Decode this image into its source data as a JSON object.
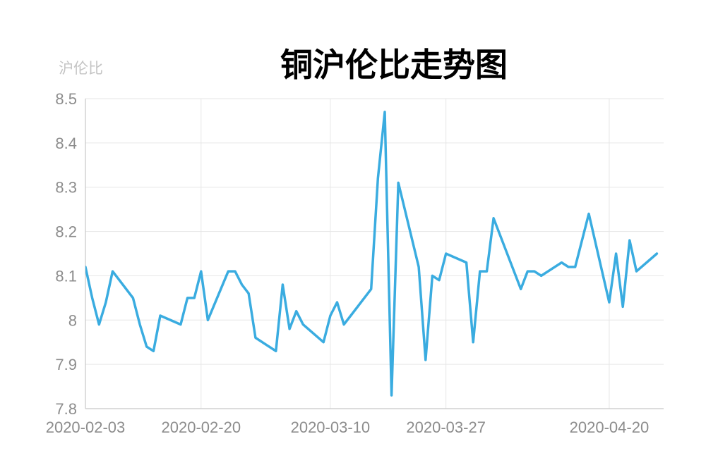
{
  "chart_data": {
    "type": "line",
    "title": "铜沪伦比走势图",
    "ylabel": "沪伦比",
    "xlabel": "",
    "ylim": [
      7.8,
      8.5
    ],
    "yticks": [
      7.8,
      7.9,
      8,
      8.1,
      8.2,
      8.3,
      8.4,
      8.5
    ],
    "xlim": [
      "2020-02-03",
      "2020-04-28"
    ],
    "xticks": [
      "2020-02-03",
      "2020-02-20",
      "2020-03-10",
      "2020-03-27",
      "2020-04-20"
    ],
    "grid": true,
    "legend": "none",
    "color": "#3aace0",
    "series": [
      {
        "x": [
          "2020-02-03",
          "2020-02-04",
          "2020-02-05",
          "2020-02-06",
          "2020-02-07",
          "2020-02-10",
          "2020-02-11",
          "2020-02-12",
          "2020-02-13",
          "2020-02-14",
          "2020-02-17",
          "2020-02-18",
          "2020-02-19",
          "2020-02-20",
          "2020-02-21",
          "2020-02-24",
          "2020-02-25",
          "2020-02-26",
          "2020-02-27",
          "2020-02-28",
          "2020-03-02",
          "2020-03-03",
          "2020-03-04",
          "2020-03-05",
          "2020-03-06",
          "2020-03-09",
          "2020-03-10",
          "2020-03-11",
          "2020-03-12",
          "2020-03-13",
          "2020-03-16",
          "2020-03-17",
          "2020-03-18",
          "2020-03-19",
          "2020-03-20",
          "2020-03-23",
          "2020-03-24",
          "2020-03-25",
          "2020-03-26",
          "2020-03-27",
          "2020-03-30",
          "2020-03-31",
          "2020-04-01",
          "2020-04-02",
          "2020-04-03",
          "2020-04-07",
          "2020-04-08",
          "2020-04-09",
          "2020-04-10",
          "2020-04-13",
          "2020-04-14",
          "2020-04-15",
          "2020-04-16",
          "2020-04-17",
          "2020-04-20",
          "2020-04-21",
          "2020-04-22",
          "2020-04-23",
          "2020-04-24",
          "2020-04-27"
        ],
        "values": [
          8.12,
          8.05,
          7.99,
          8.04,
          8.11,
          8.05,
          7.99,
          7.94,
          7.93,
          8.01,
          7.99,
          8.05,
          8.05,
          8.11,
          8.0,
          8.11,
          8.11,
          8.08,
          8.06,
          7.96,
          7.93,
          8.08,
          7.98,
          8.02,
          7.99,
          7.95,
          8.01,
          8.04,
          7.99,
          8.01,
          8.07,
          8.32,
          8.47,
          7.83,
          8.31,
          8.12,
          7.91,
          8.1,
          8.09,
          8.15,
          8.13,
          7.95,
          8.11,
          8.11,
          8.23,
          8.07,
          8.11,
          8.11,
          8.1,
          8.13,
          8.12,
          8.12,
          8.18,
          8.24,
          8.04,
          8.15,
          8.03,
          8.18,
          8.11,
          8.15
        ]
      }
    ]
  }
}
